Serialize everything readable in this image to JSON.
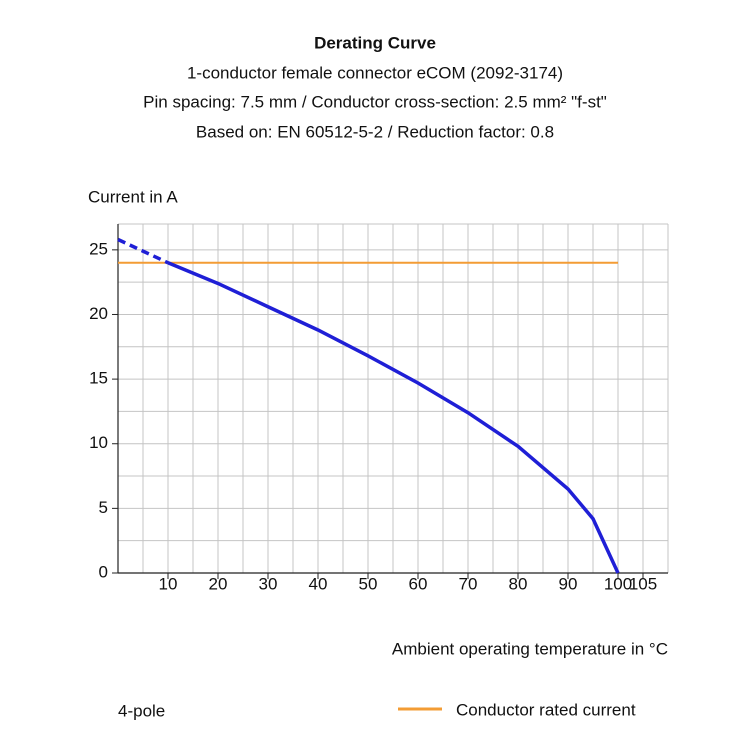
{
  "chart_data": {
    "type": "line",
    "title": "Derating Curve",
    "subtitle": [
      "1-conductor female connector eCOM (2092-3174)",
      "Pin spacing: 7.5 mm / Conductor cross-section: 2.5 mm² \"f-st\"",
      "Based on: EN 60512-5-2 / Reduction factor: 0.8"
    ],
    "y_label": "Current in A",
    "x_label": "Ambient operating temperature in °C",
    "x": [
      0,
      10,
      20,
      30,
      40,
      50,
      60,
      70,
      80,
      90,
      95,
      100
    ],
    "series": [
      {
        "name": "4-pole",
        "color": "#1f1fd6",
        "dashed_until_index": 1,
        "values": [
          25.8,
          24,
          22.4,
          20.6,
          18.8,
          16.8,
          14.7,
          12.4,
          9.8,
          6.5,
          4.2,
          0
        ]
      },
      {
        "name": "Conductor rated current",
        "color": "#f39c34",
        "values": [
          24,
          24,
          24,
          24,
          24,
          24,
          24,
          24,
          24,
          24,
          24,
          24
        ]
      }
    ],
    "xlim": [
      0,
      110
    ],
    "ylim": [
      0,
      27
    ],
    "xticks": [
      10,
      20,
      30,
      40,
      50,
      60,
      70,
      80,
      90,
      100,
      105
    ],
    "yticks": [
      0,
      5,
      10,
      15,
      20,
      25
    ],
    "grid": true,
    "xgrid_step": 5,
    "ygrid_step": 2.5
  }
}
